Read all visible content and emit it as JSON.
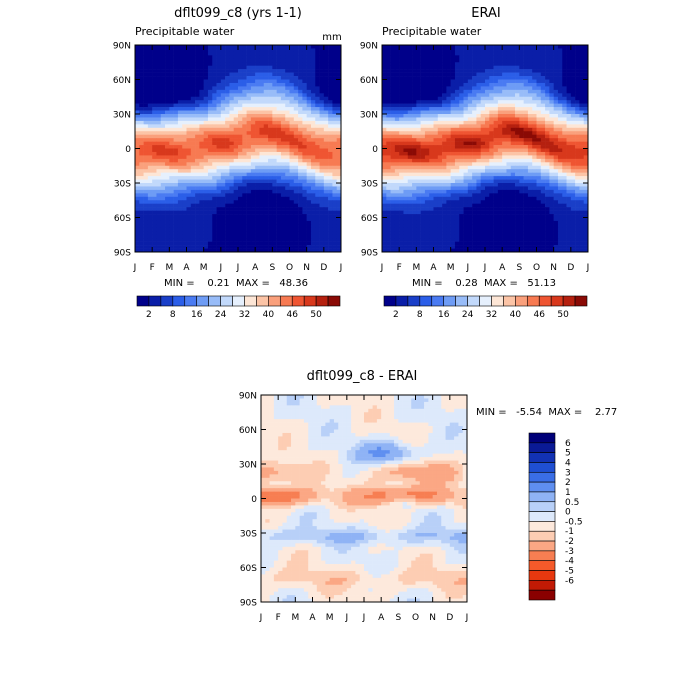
{
  "chart_data": [
    {
      "type": "heatmap",
      "title": "dflt099_c8 (yrs 1-1)",
      "subtitle": "Precipitable water",
      "units": "mm",
      "x_tick_labels": [
        "J",
        "F",
        "M",
        "A",
        "M",
        "J",
        "J",
        "A",
        "S",
        "O",
        "N",
        "D",
        "J"
      ],
      "y_tick_labels": [
        "90N",
        "60N",
        "30N",
        "0",
        "30S",
        "60S",
        "90S"
      ],
      "ylim": [
        -90,
        90
      ],
      "stats_text": "MIN =    0.21  MAX =   48.36",
      "min": 0.21,
      "max": 48.36,
      "colorbar_labels": [
        "2",
        "8",
        "16",
        "24",
        "32",
        "40",
        "46",
        "50"
      ],
      "colorbar_levels": [
        2,
        4,
        6,
        8,
        10,
        13,
        16,
        20,
        24,
        28,
        32,
        36,
        40,
        43,
        46,
        48,
        50
      ],
      "colorbar_colors": [
        "#00008a",
        "#0a1ea8",
        "#1a3fc8",
        "#2b5ee8",
        "#4a7bf2",
        "#6e9cf5",
        "#98bcf8",
        "#c2d9fb",
        "#e6f0fd",
        "#fde6d6",
        "#fcc4a6",
        "#faa07c",
        "#f77a52",
        "#ef5532",
        "#d8381c",
        "#b5200f",
        "#8a0a05"
      ]
    },
    {
      "type": "heatmap",
      "title": "ERAI",
      "subtitle": "Precipitable water",
      "x_tick_labels": [
        "J",
        "F",
        "M",
        "A",
        "M",
        "J",
        "J",
        "A",
        "S",
        "O",
        "N",
        "D",
        "J"
      ],
      "y_tick_labels": [
        "90N",
        "60N",
        "30N",
        "0",
        "30S",
        "60S",
        "90S"
      ],
      "ylim": [
        -90,
        90
      ],
      "stats_text": "MIN =    0.28  MAX =   51.13",
      "min": 0.28,
      "max": 51.13,
      "colorbar_labels": [
        "2",
        "8",
        "16",
        "24",
        "32",
        "40",
        "46",
        "50"
      ],
      "colorbar_levels": [
        2,
        4,
        6,
        8,
        10,
        13,
        16,
        20,
        24,
        28,
        32,
        36,
        40,
        43,
        46,
        48,
        50
      ],
      "colorbar_colors": [
        "#00008a",
        "#0a1ea8",
        "#1a3fc8",
        "#2b5ee8",
        "#4a7bf2",
        "#6e9cf5",
        "#98bcf8",
        "#c2d9fb",
        "#e6f0fd",
        "#fde6d6",
        "#fcc4a6",
        "#faa07c",
        "#f77a52",
        "#ef5532",
        "#d8381c",
        "#b5200f",
        "#8a0a05"
      ]
    },
    {
      "type": "heatmap",
      "title": "dflt099_c8 - ERAI",
      "x_tick_labels": [
        "J",
        "F",
        "M",
        "A",
        "M",
        "J",
        "J",
        "A",
        "S",
        "O",
        "N",
        "D",
        "J"
      ],
      "y_tick_labels": [
        "90N",
        "60N",
        "30N",
        "0",
        "30S",
        "60S",
        "90S"
      ],
      "ylim": [
        -90,
        90
      ],
      "stats_text": "MIN =   -5.54  MAX =    2.77",
      "min": -5.54,
      "max": 2.77,
      "colorbar_labels": [
        "6",
        "5",
        "4",
        "3",
        "2",
        "1",
        "0.5",
        "0",
        "-0.5",
        "-1",
        "-2",
        "-3",
        "-4",
        "-5",
        "-6"
      ],
      "colorbar_levels": [
        -6,
        -5,
        -4,
        -3,
        -2,
        -1,
        -0.5,
        0,
        0.5,
        1,
        2,
        3,
        4,
        5,
        6
      ],
      "colorbar_colors": [
        "#8a0000",
        "#c21a05",
        "#e8380f",
        "#f55a2a",
        "#f77e52",
        "#fba784",
        "#fdcdb3",
        "#fde9dc",
        "#dde9fb",
        "#b8d0f8",
        "#8fb3f5",
        "#5f8ff0",
        "#3a6ee6",
        "#1f4fd2",
        "#1232b4",
        "#0a1a96",
        "#000078"
      ]
    }
  ]
}
